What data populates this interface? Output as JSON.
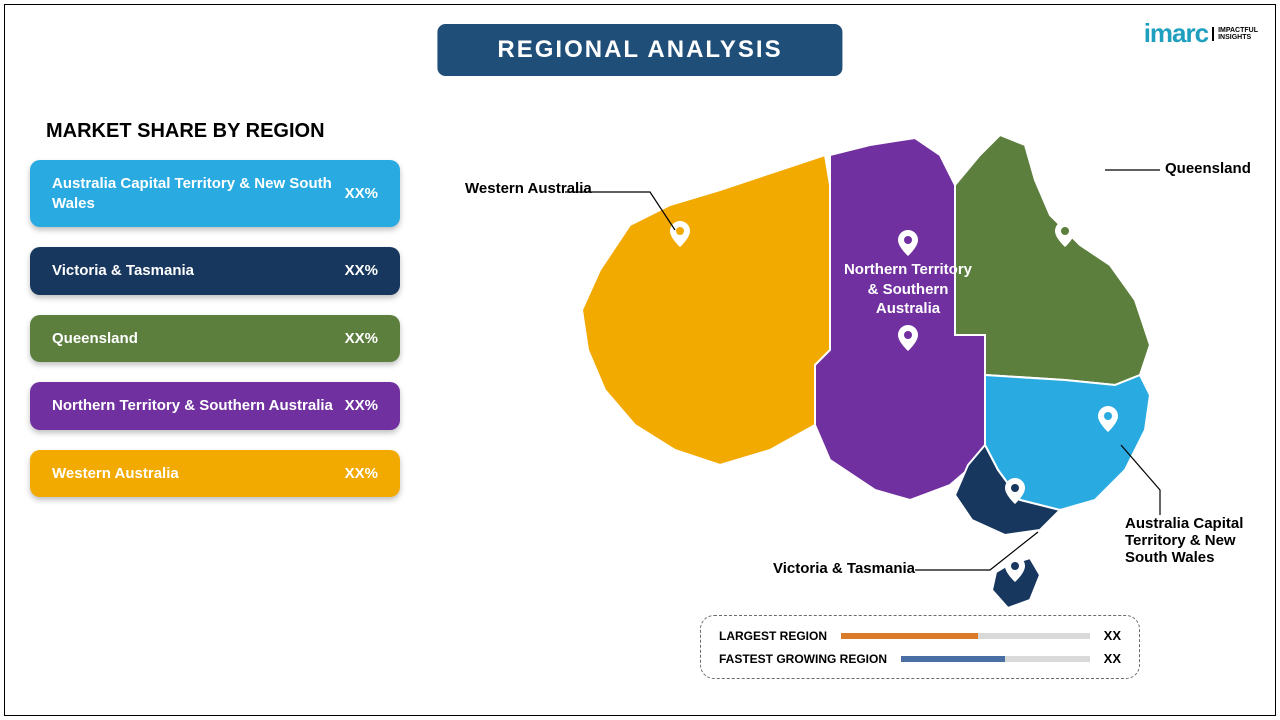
{
  "logo": {
    "brand": "imarc",
    "brand_color": "#1f9fbf",
    "brand_fontsize": 26,
    "tagline_top": "IMPACTFUL",
    "tagline_bottom": "INSIGHTS",
    "tagline_fontsize": 7
  },
  "title": {
    "text": "REGIONAL ANALYSIS",
    "fontsize": 24,
    "bg": "#1f4e79",
    "color": "#ffffff"
  },
  "section_heading": {
    "text": "MARKET SHARE BY REGION",
    "fontsize": 20,
    "color": "#000000"
  },
  "regions": [
    {
      "label": "Australia Capital Territory & New South Wales",
      "value": "XX%",
      "color": "#29abe2"
    },
    {
      "label": "Victoria & Tasmania",
      "value": "XX%",
      "color": "#17375e"
    },
    {
      "label": "Queensland",
      "value": "XX%",
      "color": "#5c7f3e"
    },
    {
      "label": "Northern Territory & Southern Australia",
      "value": "XX%",
      "color": "#7030a0"
    },
    {
      "label": "Western Australia",
      "value": "XX%",
      "color": "#f2a900"
    }
  ],
  "bar_fontsize": 15,
  "map": {
    "callouts": {
      "wa": "Western Australia",
      "qld": "Queensland",
      "vic": "Victoria & Tasmania",
      "nsw": "Australia Capital Territory & New South Wales"
    },
    "center_label_top": "Northern Territory & Southern Australia",
    "center_fontsize": 15,
    "callout_fontsize": 15,
    "pin_stroke": "#ffffff",
    "pin_fill_wa": "#f2a900",
    "pin_fill_nt": "#7030a0",
    "pin_fill_qld": "#5c7f3e",
    "pin_fill_nsw": "#29abe2",
    "pin_fill_vic": "#17375e"
  },
  "legend": {
    "rows": [
      {
        "label": "LARGEST REGION",
        "bar_color": "#d97b29",
        "fill_pct": 55,
        "value": "XX"
      },
      {
        "label": "FASTEST GROWING REGION",
        "bar_color": "#4a6fa5",
        "fill_pct": 55,
        "value": "XX"
      }
    ],
    "label_fontsize": 12,
    "value_fontsize": 13
  }
}
